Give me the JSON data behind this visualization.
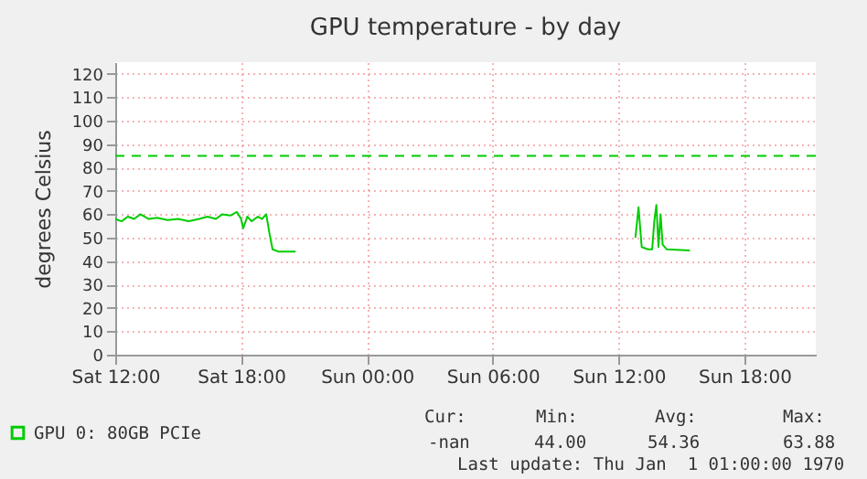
{
  "chart_data": {
    "type": "line",
    "title": "GPU temperature - by day",
    "ylabel": "degrees Celsius",
    "x": [
      "1970-01-03T12:00",
      "1970-01-03T12:18",
      "1970-01-03T12:36",
      "1970-01-03T12:54",
      "1970-01-03T13:12",
      "1970-01-03T13:36",
      "1970-01-03T14:00",
      "1970-01-03T14:30",
      "1970-01-03T15:00",
      "1970-01-03T15:30",
      "1970-01-03T16:00",
      "1970-01-03T16:24",
      "1970-01-03T16:48",
      "1970-01-03T17:06",
      "1970-01-03T17:30",
      "1970-01-03T17:48",
      "1970-01-03T18:00",
      "1970-01-03T18:06",
      "1970-01-03T18:18",
      "1970-01-03T18:30",
      "1970-01-03T18:48",
      "1970-01-03T19:00",
      "1970-01-03T19:12",
      "1970-01-03T19:21",
      "1970-01-03T19:30",
      "1970-01-03T19:48",
      "1970-01-03T20:36",
      "1970-01-04T04:00",
      "1970-01-04T12:48",
      "1970-01-04T12:57",
      "1970-01-04T13:06",
      "1970-01-04T13:24",
      "1970-01-04T13:36",
      "1970-01-04T13:42",
      "1970-01-04T13:48",
      "1970-01-04T13:54",
      "1970-01-04T14:00",
      "1970-01-04T14:06",
      "1970-01-04T14:18",
      "1970-01-04T15:24"
    ],
    "series": [
      {
        "name": "GPU 0: 80GB PCIe",
        "color": "#00cc00",
        "values": [
          58,
          57,
          59,
          58,
          60,
          58,
          58.5,
          57.5,
          58,
          57,
          58,
          59,
          58,
          60,
          59.5,
          61,
          58,
          54,
          59,
          57,
          59,
          58,
          60,
          52,
          45,
          44,
          44,
          null,
          50,
          63,
          46,
          45,
          45,
          57,
          64,
          46,
          60,
          47,
          45,
          44.5
        ]
      }
    ],
    "xlim": [
      "1970-01-03T12:00",
      "1970-01-04T21:24"
    ],
    "xticks": [
      {
        "value": "1970-01-03T12:00",
        "label": "Sat 12:00"
      },
      {
        "value": "1970-01-03T18:00",
        "label": "Sat 18:00"
      },
      {
        "value": "1970-01-04T00:00",
        "label": "Sun 00:00"
      },
      {
        "value": "1970-01-04T06:00",
        "label": "Sun 06:00"
      },
      {
        "value": "1970-01-04T12:00",
        "label": "Sun 12:00"
      },
      {
        "value": "1970-01-04T18:00",
        "label": "Sun 18:00"
      }
    ],
    "ylim": [
      0,
      125
    ],
    "yticks": [
      0,
      10,
      20,
      30,
      40,
      50,
      60,
      70,
      80,
      90,
      100,
      110,
      120
    ],
    "ref_lines": [
      {
        "axis": "y",
        "value": 85,
        "color": "#00cc00",
        "line_style": "dashed"
      }
    ],
    "annotations": [
      "Cur:",
      "Min:",
      "Avg:",
      "Max:",
      "-nan",
      "44.00",
      "54.36",
      "63.88",
      "Last update: Thu Jan  1 01:00:00 1970"
    ],
    "grid": true,
    "legend": "bottom left",
    "marker": "none",
    "line_style": "solid"
  }
}
